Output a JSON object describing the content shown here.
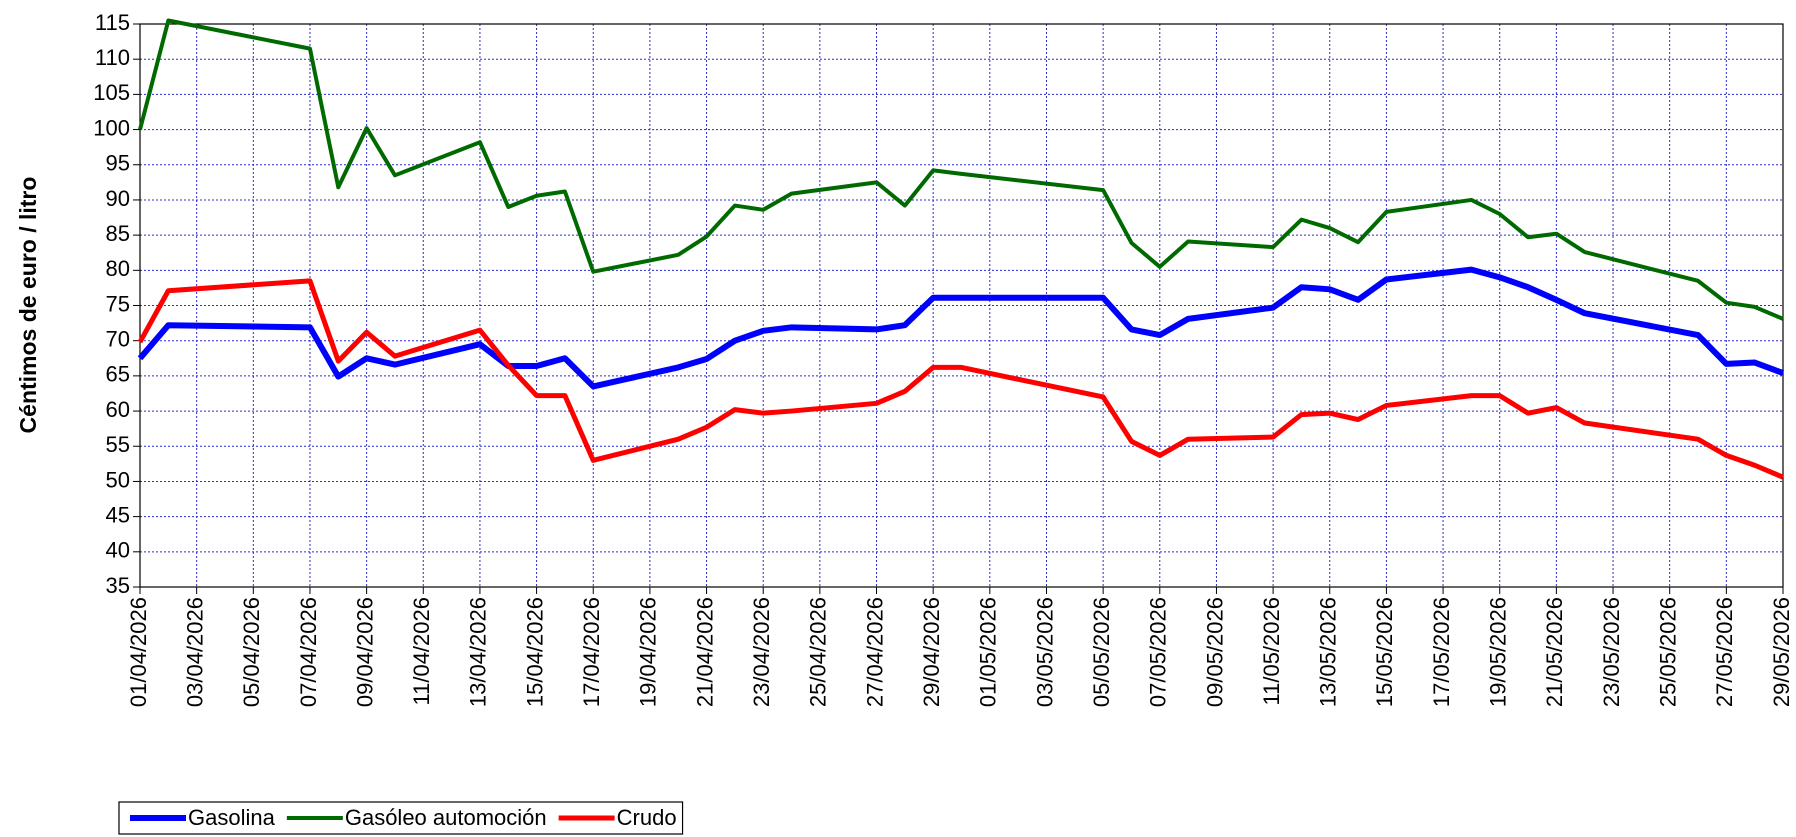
{
  "chart_data": {
    "type": "line",
    "ylabel": "Céntimos de euro / litro",
    "x": [
      "01/04/2026",
      "02/04/2026",
      "07/04/2026",
      "08/04/2026",
      "09/04/2026",
      "10/04/2026",
      "13/04/2026",
      "14/04/2026",
      "15/04/2026",
      "16/04/2026",
      "17/04/2026",
      "20/04/2026",
      "21/04/2026",
      "22/04/2026",
      "23/04/2026",
      "24/04/2026",
      "27/04/2026",
      "28/04/2026",
      "29/04/2026",
      "30/04/2026",
      "05/05/2026",
      "06/05/2026",
      "07/05/2026",
      "08/05/2026",
      "11/05/2026",
      "12/05/2026",
      "13/05/2026",
      "14/05/2026",
      "15/05/2026",
      "18/05/2026",
      "19/05/2026",
      "20/05/2026",
      "21/05/2026",
      "22/05/2026",
      "26/05/2026",
      "27/05/2026",
      "28/05/2026",
      "29/05/2026"
    ],
    "series": [
      {
        "name": "Gasolina",
        "color": "#0000ff",
        "values": [
          67.5,
          72.2,
          71.9,
          64.9,
          67.5,
          66.6,
          69.5,
          66.4,
          66.4,
          67.5,
          63.5,
          66.2,
          67.4,
          70,
          71.4,
          71.9,
          71.6,
          72.2,
          76.1,
          76.1,
          76.1,
          71.6,
          70.8,
          73.1,
          74.7,
          77.6,
          77.3,
          75.8,
          78.7,
          80.1,
          79,
          77.6,
          75.8,
          73.9,
          70.8,
          66.7,
          66.9,
          65.4
        ]
      },
      {
        "name": "Gasóleo automoción",
        "color": "#006a00",
        "values": [
          100,
          115.5,
          111.5,
          91.8,
          100.2,
          93.5,
          98.2,
          89,
          90.6,
          91.2,
          79.8,
          82.2,
          84.8,
          89.2,
          88.6,
          90.9,
          92.5,
          89.2,
          94.2,
          93.7,
          91.4,
          83.9,
          80.5,
          84.1,
          83.3,
          87.2,
          86,
          84,
          88.3,
          90,
          88,
          84.7,
          85.2,
          82.6,
          78.5,
          75.4,
          74.8,
          73.1
        ]
      },
      {
        "name": "Crudo",
        "color": "#ff0000",
        "values": [
          69.8,
          77.1,
          78.5,
          67.1,
          71.2,
          67.8,
          71.5,
          66.5,
          62.2,
          62.2,
          53,
          56,
          57.7,
          60.2,
          59.7,
          60,
          61.1,
          62.8,
          66.2,
          66.2,
          62,
          55.7,
          53.7,
          56,
          56.3,
          59.5,
          59.7,
          58.8,
          60.8,
          62.2,
          62.2,
          59.7,
          60.5,
          58.3,
          56,
          53.7,
          52.3,
          50.6
        ]
      }
    ],
    "xlim": [
      "01/04/2026",
      "29/05/2026"
    ],
    "xticks": [
      "01/04/2026",
      "03/04/2026",
      "05/04/2026",
      "07/04/2026",
      "09/04/2026",
      "11/04/2026",
      "13/04/2026",
      "15/04/2026",
      "17/04/2026",
      "19/04/2026",
      "21/04/2026",
      "23/04/2026",
      "25/04/2026",
      "27/04/2026",
      "29/04/2026",
      "01/05/2026",
      "03/05/2026",
      "05/05/2026",
      "07/05/2026",
      "09/05/2026",
      "11/05/2026",
      "13/05/2026",
      "15/05/2026",
      "17/05/2026",
      "19/05/2026",
      "21/05/2026",
      "23/05/2026",
      "25/05/2026",
      "27/05/2026",
      "29/05/2026"
    ],
    "ylim": [
      35,
      115
    ],
    "yticks": [
      35,
      40,
      45,
      50,
      55,
      60,
      65,
      70,
      75,
      80,
      85,
      90,
      95,
      100,
      105,
      110,
      115
    ],
    "grid": true,
    "legend": "bottom-left"
  }
}
